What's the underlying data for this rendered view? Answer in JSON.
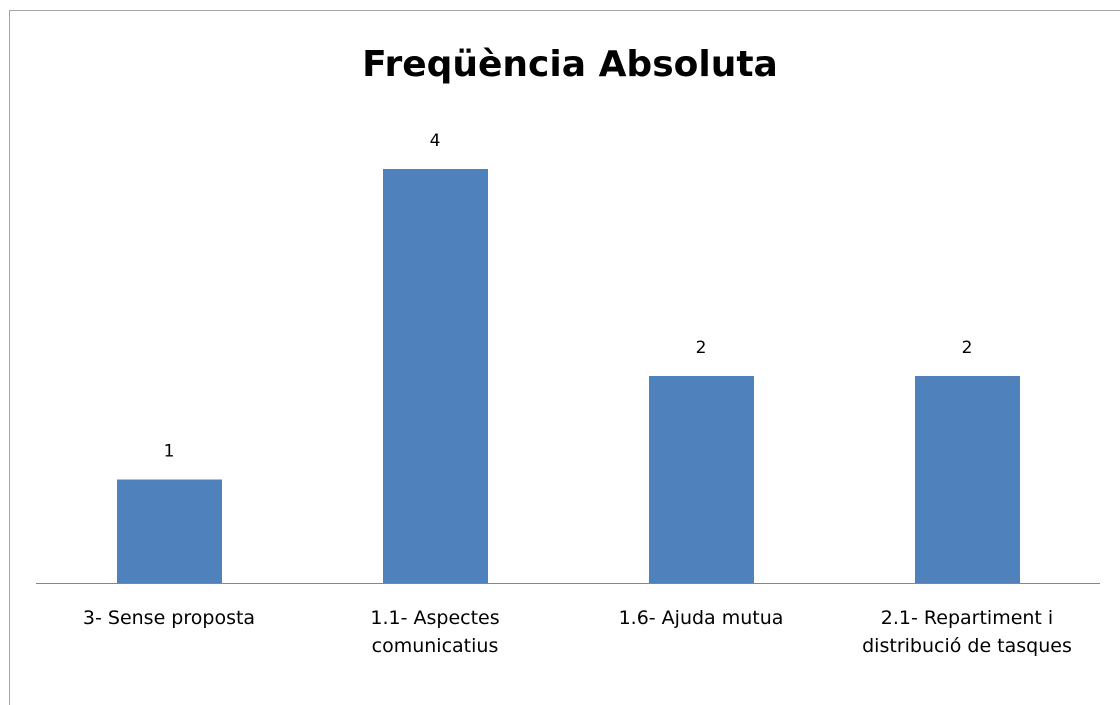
{
  "chart_data": {
    "type": "bar",
    "title": "Freqüència Absoluta",
    "categories": [
      "3- Sense proposta",
      "1.1- Aspectes comunicatius",
      "1.6- Ajuda mutua",
      "2.1- Repartiment i distribució de tasques"
    ],
    "values": [
      1,
      4,
      2,
      2
    ],
    "color": "#4f81bd"
  }
}
